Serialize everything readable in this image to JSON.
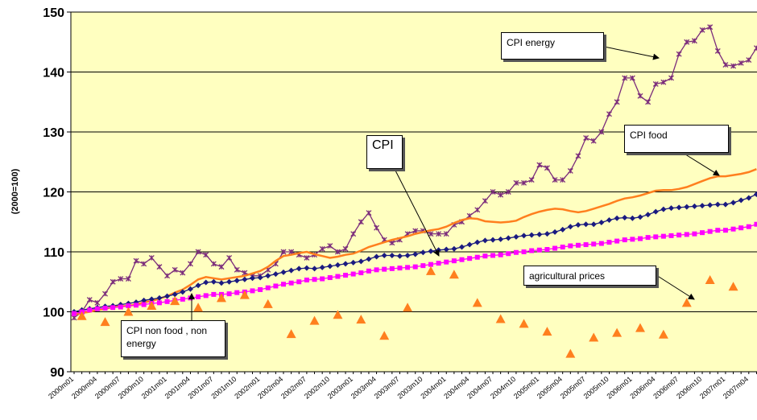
{
  "chart_data": {
    "type": "line",
    "y_label": "(2000=100)",
    "categories": [
      "2000m01",
      null,
      null,
      "2000m04",
      null,
      null,
      "2000m07",
      null,
      null,
      "2000m10",
      null,
      null,
      "2001m01",
      null,
      null,
      "2001m04",
      null,
      null,
      "2001m07",
      null,
      null,
      "2001m10",
      null,
      null,
      "2002m01",
      null,
      null,
      "2002m04",
      null,
      null,
      "2002m07",
      null,
      null,
      "2002m10",
      null,
      null,
      "2003m01",
      null,
      null,
      "2003m04",
      null,
      null,
      "2003m07",
      null,
      null,
      "2003m10",
      null,
      null,
      "2004m01",
      null,
      null,
      "2004m04",
      null,
      null,
      "2004m07",
      null,
      null,
      "2004m10",
      null,
      null,
      "2005m01",
      null,
      null,
      "2005m04",
      null,
      null,
      "2005m07",
      null,
      null,
      "2005m10",
      null,
      null,
      "2006m01",
      null,
      null,
      "2006m04",
      null,
      null,
      "2006m07",
      null,
      null,
      "2006m10",
      null,
      null,
      "2007m01",
      null,
      null,
      "2007m04",
      null
    ],
    "ylim": [
      90,
      150
    ],
    "yticks": [
      90,
      100,
      110,
      120,
      130,
      140,
      150
    ],
    "grid": true,
    "series": [
      {
        "name": "CPI energy",
        "color": "#7b2c7b",
        "marker": "x",
        "line": true,
        "values": [
          99,
          100,
          102,
          101.5,
          103,
          105,
          105.5,
          105.5,
          108.5,
          108,
          109,
          107.5,
          106,
          107,
          106.5,
          108,
          110,
          109.5,
          108,
          107.5,
          109,
          107,
          106.5,
          106,
          106,
          107,
          108,
          110,
          110,
          109.5,
          109,
          109.5,
          110.5,
          111,
          110,
          110.5,
          113,
          115,
          116.5,
          114,
          112,
          111.5,
          112,
          113,
          113.5,
          113.5,
          113,
          113,
          113,
          114.5,
          115,
          116,
          117,
          118.5,
          120,
          119.5,
          120,
          121.5,
          121.5,
          122,
          124.5,
          124,
          122,
          122,
          123.5,
          126,
          129,
          128.5,
          130,
          133,
          135,
          139,
          139,
          136,
          135,
          138,
          138.3,
          139,
          143,
          145,
          145.2,
          147,
          147.5,
          143.5,
          141.2,
          141,
          141.5,
          142,
          144
        ]
      },
      {
        "name": "CPI food",
        "color": "#ff7f1e",
        "marker": "none",
        "line": true,
        "values": [
          99.6,
          99.8,
          100.0,
          100.3,
          100.5,
          100.8,
          100.9,
          101.0,
          101.2,
          101.6,
          101.8,
          102.2,
          102.6,
          103.2,
          103.7,
          104.5,
          105.4,
          105.8,
          105.6,
          105.4,
          105.6,
          105.8,
          106.0,
          106.4,
          106.8,
          107.5,
          108.5,
          109.3,
          109.5,
          109.8,
          110.0,
          109.6,
          109.3,
          109.0,
          109.2,
          109.5,
          109.7,
          110.2,
          110.8,
          111.2,
          111.6,
          112.0,
          112.3,
          112.6,
          113.0,
          113.3,
          113.6,
          113.8,
          114.2,
          114.8,
          115.3,
          115.6,
          115.5,
          115.1,
          115.0,
          114.9,
          115.0,
          115.2,
          115.8,
          116.3,
          116.7,
          117.0,
          117.2,
          117.1,
          116.8,
          116.6,
          116.8,
          117.2,
          117.6,
          118.0,
          118.5,
          118.9,
          119.1,
          119.4,
          119.8,
          120.2,
          120.3,
          120.3,
          120.5,
          120.8,
          121.3,
          121.8,
          122.3,
          122.6,
          122.6,
          122.8,
          123.0,
          123.3,
          123.8
        ]
      },
      {
        "name": "CPI",
        "color": "#1a1a80",
        "marker": "diamond",
        "line": true,
        "values": [
          100.0,
          100.3,
          100.5,
          100.7,
          100.9,
          101.0,
          101.2,
          101.4,
          101.6,
          101.9,
          102.1,
          102.3,
          102.6,
          102.9,
          103.3,
          103.8,
          104.4,
          104.9,
          105.0,
          104.8,
          105.0,
          105.2,
          105.4,
          105.6,
          105.7,
          106.0,
          106.3,
          106.6,
          106.9,
          107.2,
          107.3,
          107.2,
          107.4,
          107.6,
          107.8,
          108.0,
          108.2,
          108.4,
          108.8,
          109.2,
          109.4,
          109.4,
          109.3,
          109.4,
          109.6,
          109.9,
          110.1,
          110.3,
          110.4,
          110.5,
          110.8,
          111.2,
          111.6,
          111.9,
          112.0,
          112.1,
          112.3,
          112.5,
          112.7,
          112.8,
          112.9,
          113.0,
          113.3,
          113.7,
          114.2,
          114.5,
          114.6,
          114.6,
          114.9,
          115.3,
          115.6,
          115.7,
          115.6,
          115.8,
          116.2,
          116.7,
          117.1,
          117.3,
          117.4,
          117.5,
          117.6,
          117.7,
          117.8,
          117.9,
          117.9,
          118.2,
          118.6,
          119.0,
          119.6
        ]
      },
      {
        "name": "CPI non food , non energy",
        "color": "#ff00ff",
        "marker": "square",
        "line": true,
        "values": [
          99.7,
          100.0,
          100.3,
          100.5,
          100.6,
          100.7,
          100.8,
          101.0,
          101.1,
          101.2,
          101.4,
          101.5,
          101.7,
          101.9,
          102.1,
          102.3,
          102.5,
          102.7,
          102.9,
          102.9,
          103.0,
          103.2,
          103.3,
          103.5,
          103.7,
          104.0,
          104.3,
          104.6,
          104.8,
          105.0,
          105.3,
          105.4,
          105.5,
          105.7,
          105.9,
          106.1,
          106.3,
          106.5,
          106.8,
          107.0,
          107.1,
          107.2,
          107.3,
          107.4,
          107.5,
          107.7,
          107.9,
          108.1,
          108.3,
          108.5,
          108.7,
          108.9,
          109.1,
          109.3,
          109.4,
          109.5,
          109.7,
          109.9,
          110.0,
          110.2,
          110.3,
          110.4,
          110.6,
          110.8,
          111.0,
          111.1,
          111.2,
          111.3,
          111.4,
          111.6,
          111.8,
          112.0,
          112.1,
          112.2,
          112.4,
          112.5,
          112.6,
          112.7,
          112.8,
          112.9,
          113.0,
          113.2,
          113.4,
          113.6,
          113.6,
          113.8,
          114.0,
          114.2,
          114.6
        ]
      },
      {
        "name": "agricultural prices",
        "color": "#ff7f1e",
        "marker": "triangle",
        "line": false,
        "values": [
          null,
          99.3,
          null,
          null,
          98.3,
          null,
          null,
          100,
          null,
          null,
          101,
          null,
          null,
          101.8,
          null,
          null,
          100.7,
          null,
          null,
          102.3,
          null,
          null,
          102.8,
          null,
          null,
          101.3,
          null,
          null,
          96.3,
          null,
          null,
          98.5,
          null,
          null,
          99.5,
          null,
          null,
          98.7,
          null,
          null,
          96,
          null,
          null,
          100.7,
          null,
          null,
          106.8,
          null,
          null,
          106.2,
          null,
          null,
          101.5,
          null,
          null,
          98.8,
          null,
          null,
          98,
          null,
          null,
          96.7,
          null,
          null,
          93,
          null,
          null,
          95.7,
          null,
          null,
          96.5,
          null,
          null,
          97.3,
          null,
          null,
          96.2,
          null,
          null,
          101.5,
          null,
          null,
          105.3,
          null,
          null,
          104.2,
          null,
          null,
          null
        ]
      }
    ]
  }
}
